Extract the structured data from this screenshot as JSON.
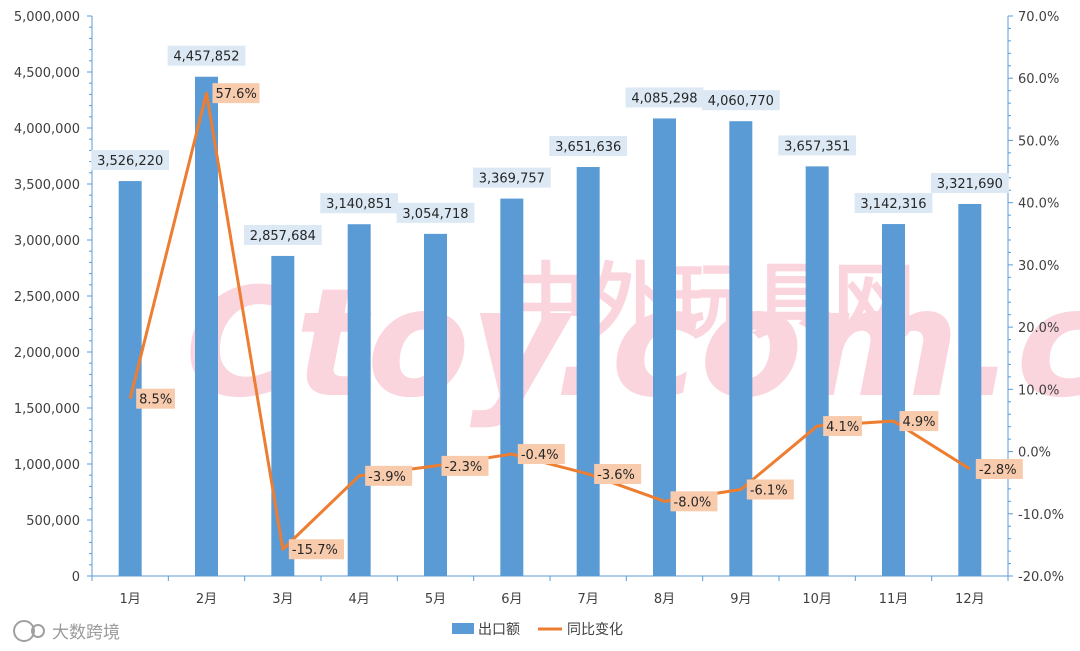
{
  "chart_data": {
    "type": "bar+line",
    "categories": [
      "1月",
      "2月",
      "3月",
      "4月",
      "5月",
      "6月",
      "7月",
      "8月",
      "9月",
      "10月",
      "11月",
      "12月"
    ],
    "series": [
      {
        "name": "出口额",
        "type": "bar",
        "axis": "left",
        "values": [
          3526220,
          4457852,
          2857684,
          3140851,
          3054718,
          3369757,
          3651636,
          4085298,
          4060770,
          3657351,
          3142316,
          3321690
        ],
        "labels": [
          "3,526,220",
          "4,457,852",
          "2,857,684",
          "3,140,851",
          "3,054,718",
          "3,369,757",
          "3,651,636",
          "4,085,298",
          "4,060,770",
          "3,657,351",
          "3,142,316",
          "3,321,690"
        ]
      },
      {
        "name": "同比变化",
        "type": "line",
        "axis": "right",
        "values": [
          8.5,
          57.6,
          -15.7,
          -3.9,
          -2.3,
          -0.4,
          -3.6,
          -8.0,
          -6.1,
          4.1,
          4.9,
          -2.8
        ],
        "labels": [
          "8.5%",
          "57.6%",
          "-15.7%",
          "-3.9%",
          "-2.3%",
          "-0.4%",
          "-3.6%",
          "-8.0%",
          "-6.1%",
          "4.1%",
          "4.9%",
          "-2.8%"
        ]
      }
    ],
    "y_left": {
      "lim": [
        0,
        5000000
      ],
      "ticks": [
        "0",
        "500,000",
        "1,000,000",
        "1,500,000",
        "2,000,000",
        "2,500,000",
        "3,000,000",
        "3,500,000",
        "4,000,000",
        "4,500,000",
        "5,000,000"
      ]
    },
    "y_right": {
      "lim": [
        -20,
        70
      ],
      "ticks": [
        "-20.0%",
        "-10.0%",
        "0.0%",
        "10.0%",
        "20.0%",
        "30.0%",
        "40.0%",
        "50.0%",
        "60.0%",
        "70.0%"
      ]
    },
    "grid": false,
    "legend": "bottom",
    "colors": {
      "bar": "#5b9bd5",
      "line": "#ed7d31"
    }
  },
  "watermark": {
    "logo": "Ctoy.com.cn",
    "chinese": "中外玩具网"
  },
  "brand": {
    "text": "大数跨境"
  }
}
